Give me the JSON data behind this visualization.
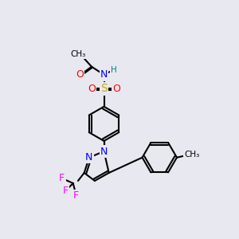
{
  "bg_color": "#e8e8f0",
  "bond_color": "#000000",
  "bond_lw": 1.5,
  "atom_colors": {
    "N": "#0000ff",
    "O": "#ff0000",
    "S": "#ccaa00",
    "F": "#ff00ff",
    "H": "#008080",
    "C": "#000000"
  },
  "font_size": 9,
  "font_size_small": 8
}
